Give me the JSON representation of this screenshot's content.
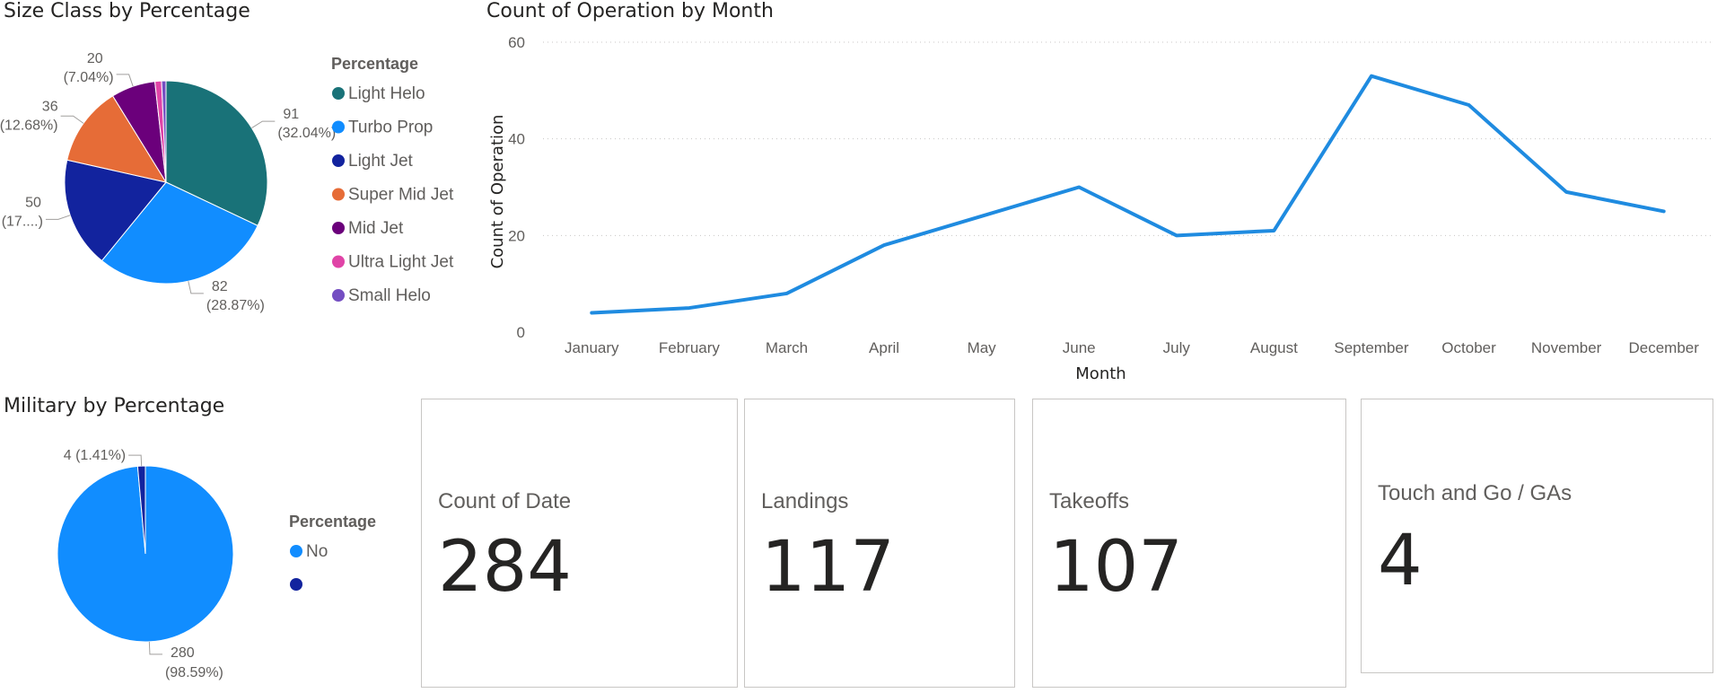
{
  "colors": {
    "light_helo": "#197278",
    "turbo_prop": "#118DFF",
    "light_jet": "#12239E",
    "super_mid_jet": "#E66C37",
    "mid_jet": "#6B007B",
    "ultra_light_jet": "#E044A7",
    "small_helo": "#744EC2",
    "line": "#1F8BE0",
    "military_no": "#118DFF",
    "military_blank": "#12239E"
  },
  "chart_data": [
    {
      "type": "pie",
      "title": "Size Class by Percentage",
      "legend_title": "Percentage",
      "legend": "right",
      "slices": [
        {
          "name": "Light Helo",
          "value": 91,
          "label": "91",
          "pct": "(32.04%)",
          "color": "#197278"
        },
        {
          "name": "Turbo Prop",
          "value": 82,
          "label": "82",
          "pct": "(28.87%)",
          "color": "#118DFF"
        },
        {
          "name": "Light Jet",
          "value": 50,
          "label": "50",
          "pct": "(17....)",
          "color": "#12239E"
        },
        {
          "name": "Super Mid Jet",
          "value": 36,
          "label": "36",
          "pct": "(12.68%)",
          "color": "#E66C37"
        },
        {
          "name": "Mid Jet",
          "value": 20,
          "label": "20",
          "pct": "(7.04%)",
          "color": "#6B007B"
        },
        {
          "name": "Ultra Light Jet",
          "value": 3,
          "label": "",
          "pct": "",
          "color": "#E044A7"
        },
        {
          "name": "Small Helo",
          "value": 2,
          "label": "",
          "pct": "",
          "color": "#744EC2"
        }
      ]
    },
    {
      "type": "line",
      "title": "Count of Operation by Month",
      "xlabel": "Month",
      "ylabel": "Count of Operation",
      "ylim": [
        0,
        60
      ],
      "yticks": [
        0,
        20,
        40,
        60
      ],
      "grid": true,
      "categories": [
        "January",
        "February",
        "March",
        "April",
        "May",
        "June",
        "July",
        "August",
        "September",
        "October",
        "November",
        "December"
      ],
      "values": [
        4,
        5,
        8,
        18,
        24,
        30,
        20,
        21,
        53,
        47,
        29,
        25
      ]
    },
    {
      "type": "pie",
      "title": "Military by Percentage",
      "legend_title": "Percentage",
      "legend": "right",
      "slices": [
        {
          "name": "No",
          "value": 280,
          "label": "280",
          "pct": "(98.59%)",
          "color": "#118DFF"
        },
        {
          "name": "",
          "value": 4,
          "label": "4 (1.41%)",
          "pct": "",
          "color": "#12239E"
        }
      ]
    }
  ],
  "cards": [
    {
      "label": "Count of Date",
      "value": "284"
    },
    {
      "label": "Landings",
      "value": "117"
    },
    {
      "label": "Takeoffs",
      "value": "107"
    },
    {
      "label": "Touch and Go / GAs",
      "value": "4"
    }
  ]
}
